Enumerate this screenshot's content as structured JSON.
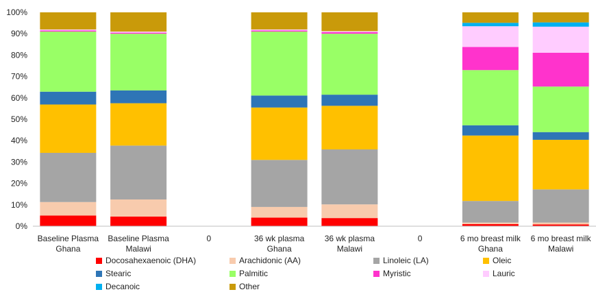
{
  "chart_data": {
    "type": "bar",
    "stacked": true,
    "normalized": true,
    "ylim": [
      0,
      100
    ],
    "yticks": [
      "0%",
      "10%",
      "20%",
      "30%",
      "40%",
      "50%",
      "60%",
      "70%",
      "80%",
      "90%",
      "100%"
    ],
    "categories": [
      [
        "Baseline Plasma",
        "Ghana"
      ],
      [
        "Baseline Plasma",
        "Malawi"
      ],
      [
        "0"
      ],
      [
        "36 wk plasma",
        "Ghana"
      ],
      [
        "36 wk plasma",
        "Malawi"
      ],
      [
        "0"
      ],
      [
        "6 mo breast milk",
        "Ghana"
      ],
      [
        "6 mo breast milk",
        "Malawi"
      ]
    ],
    "legend_position": "bottom",
    "series": [
      {
        "name": "Docosahexaenoic (DHA)",
        "color": "#ff0000",
        "values": [
          5.0,
          4.5,
          0,
          4.0,
          3.8,
          0,
          1.0,
          0.8
        ]
      },
      {
        "name": "Arachidonic (AA)",
        "color": "#f8cbad",
        "values": [
          6.3,
          8.0,
          0,
          5.0,
          6.4,
          0,
          0.7,
          0.9
        ]
      },
      {
        "name": "Linoleic (LA)",
        "color": "#a5a5a5",
        "values": [
          23.0,
          25.2,
          0,
          22.0,
          25.7,
          0,
          10.1,
          15.5
        ]
      },
      {
        "name": "Oleic",
        "color": "#ffc000",
        "values": [
          22.6,
          19.8,
          0,
          24.5,
          20.4,
          0,
          30.6,
          23.2
        ]
      },
      {
        "name": "Stearic",
        "color": "#2e75b6",
        "values": [
          6.0,
          6.0,
          0,
          5.6,
          5.2,
          0,
          4.8,
          3.6
        ]
      },
      {
        "name": "Palmitic",
        "color": "#99ff66",
        "values": [
          28.1,
          26.5,
          0,
          29.9,
          28.5,
          0,
          25.8,
          21.3
        ]
      },
      {
        "name": "Myristic",
        "color": "#ff33cc",
        "values": [
          0.5,
          0.5,
          0,
          0.5,
          0.7,
          0,
          10.8,
          15.8
        ]
      },
      {
        "name": "Lauric",
        "color": "#ffccff",
        "values": [
          0.5,
          0.5,
          0,
          0.5,
          0.5,
          0,
          9.7,
          12.2
        ]
      },
      {
        "name": "Decanoic",
        "color": "#00b0f0",
        "values": [
          0,
          0,
          0,
          0,
          0,
          0,
          1.6,
          2.0
        ]
      },
      {
        "name": "Other",
        "color": "#c99a0a",
        "values": [
          8.0,
          9.0,
          0,
          8.0,
          8.8,
          0,
          4.9,
          4.7
        ]
      }
    ]
  }
}
